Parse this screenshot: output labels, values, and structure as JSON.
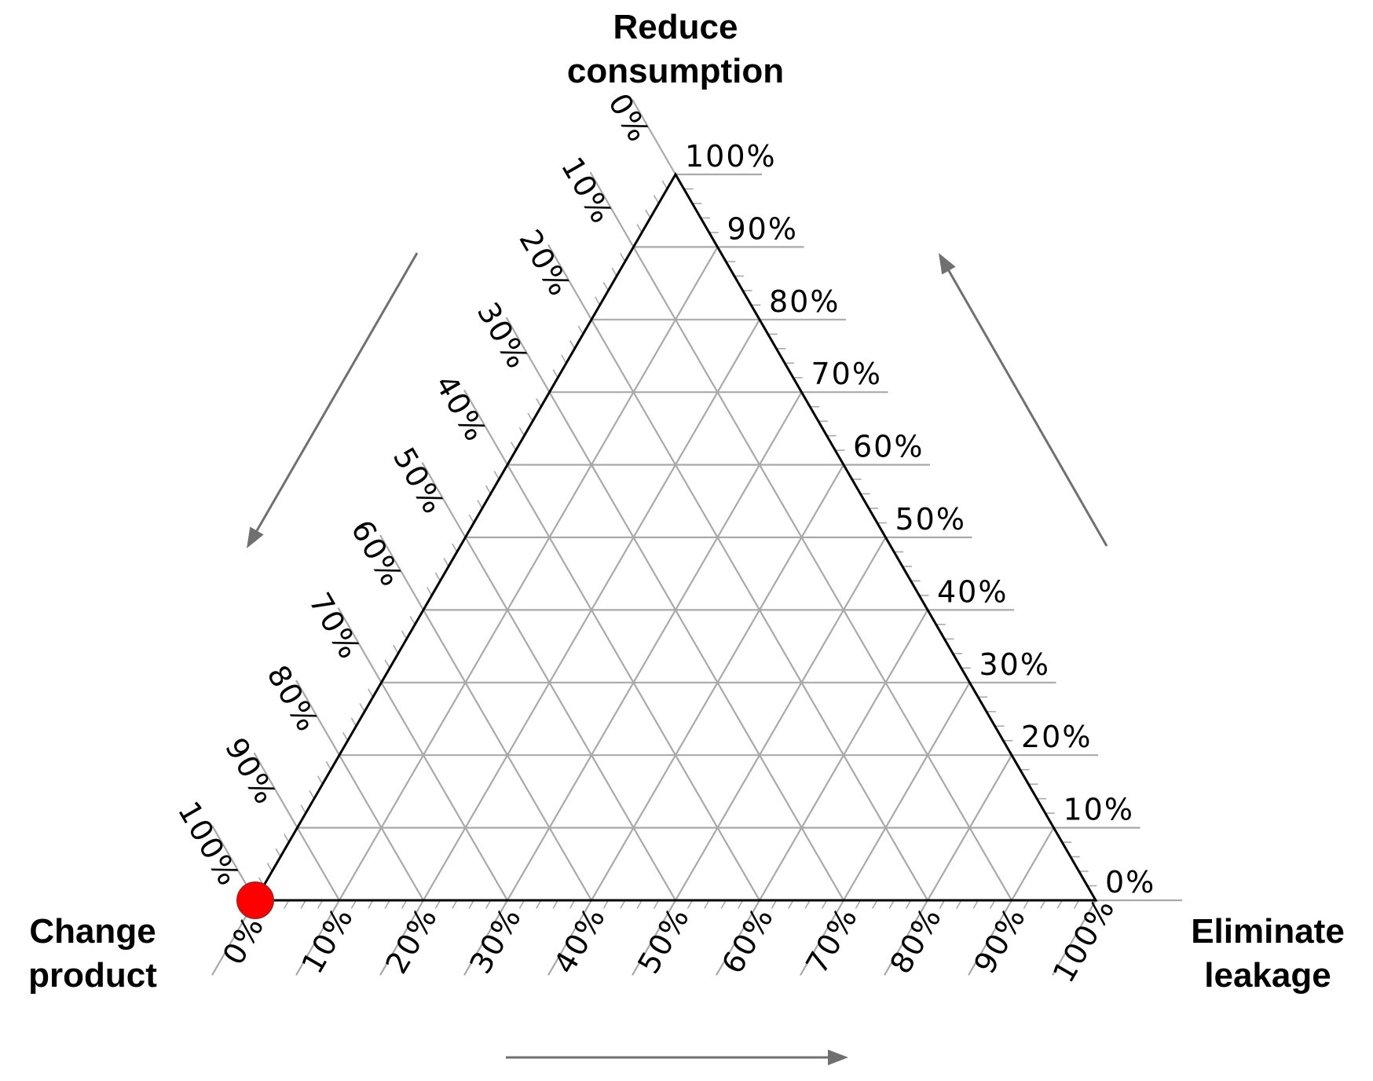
{
  "chart_data": {
    "type": "ternary",
    "title": "",
    "vertices": {
      "top": "Reduce consumption",
      "bottom_left": "Change product",
      "bottom_right": "Eliminate leakage"
    },
    "vertex_label_lines": {
      "top": [
        "Reduce",
        "consumption"
      ],
      "bottom_left": [
        "Change",
        "product"
      ],
      "bottom_right": [
        "Eliminate",
        "leakage"
      ]
    },
    "axes": [
      {
        "name": "Reduce consumption",
        "side": "right",
        "range": [
          0,
          100
        ],
        "unit": "%"
      },
      {
        "name": "Change product",
        "side": "left",
        "range": [
          0,
          100
        ],
        "unit": "%"
      },
      {
        "name": "Eliminate leakage",
        "side": "bottom",
        "range": [
          0,
          100
        ],
        "unit": "%"
      }
    ],
    "tick_values": [
      0,
      10,
      20,
      30,
      40,
      50,
      60,
      70,
      80,
      90,
      100
    ],
    "tick_labels": [
      "0%",
      "10%",
      "20%",
      "30%",
      "40%",
      "50%",
      "60%",
      "70%",
      "80%",
      "90%",
      "100%"
    ],
    "grid": true,
    "points": [
      {
        "reduce_consumption": 0,
        "change_product": 100,
        "eliminate_leakage": 0,
        "color": "#ff0000"
      }
    ]
  },
  "colors": {
    "grid": "#a9a9a9",
    "edge": "#000000",
    "arrow": "#707070",
    "point": "#ff0000",
    "point_stroke": "#aa2020"
  }
}
